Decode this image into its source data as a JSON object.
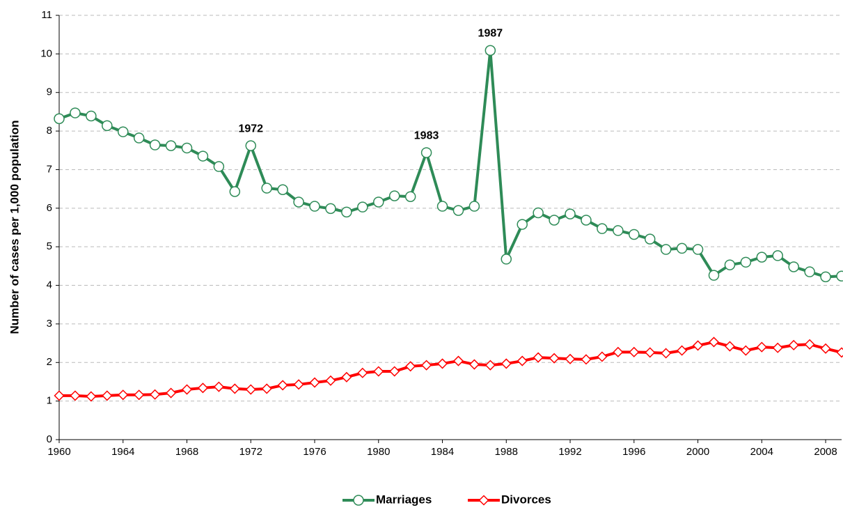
{
  "chart_data": {
    "type": "line",
    "y_label": "Number of cases per 1,000 population",
    "x": [
      1960,
      1961,
      1962,
      1963,
      1964,
      1965,
      1966,
      1967,
      1968,
      1969,
      1970,
      1971,
      1972,
      1973,
      1974,
      1975,
      1976,
      1977,
      1978,
      1979,
      1980,
      1981,
      1982,
      1983,
      1984,
      1985,
      1986,
      1987,
      1988,
      1989,
      1990,
      1991,
      1992,
      1993,
      1994,
      1995,
      1996,
      1997,
      1998,
      1999,
      2000,
      2001,
      2002,
      2003,
      2004,
      2005,
      2006,
      2007,
      2008,
      2009
    ],
    "series": [
      {
        "name": "Marriages",
        "color": "#2e8b57",
        "marker": "circle",
        "values": [
          8.32,
          8.47,
          8.39,
          8.14,
          7.98,
          7.82,
          7.64,
          7.62,
          7.56,
          7.35,
          7.08,
          6.43,
          7.62,
          6.52,
          6.48,
          6.16,
          6.05,
          5.99,
          5.9,
          6.03,
          6.16,
          6.32,
          6.3,
          7.44,
          6.05,
          5.94,
          6.05,
          10.09,
          4.68,
          5.58,
          5.88,
          5.69,
          5.85,
          5.69,
          5.47,
          5.42,
          5.32,
          5.2,
          4.93,
          4.96,
          4.93,
          4.26,
          4.53,
          4.6,
          4.73,
          4.77,
          4.48,
          4.35,
          4.22,
          4.24
        ]
      },
      {
        "name": "Divorces",
        "color": "#ff0000",
        "marker": "diamond",
        "values": [
          1.14,
          1.14,
          1.12,
          1.14,
          1.16,
          1.16,
          1.17,
          1.21,
          1.3,
          1.34,
          1.37,
          1.32,
          1.3,
          1.32,
          1.41,
          1.43,
          1.48,
          1.53,
          1.62,
          1.73,
          1.77,
          1.77,
          1.9,
          1.93,
          1.97,
          2.04,
          1.95,
          1.93,
          1.97,
          2.04,
          2.13,
          2.11,
          2.09,
          2.08,
          2.15,
          2.27,
          2.27,
          2.26,
          2.24,
          2.31,
          2.44,
          2.53,
          2.42,
          2.31,
          2.4,
          2.38,
          2.45,
          2.47,
          2.36,
          2.26
        ]
      }
    ],
    "annotations": [
      {
        "text": "1972",
        "x": 1972
      },
      {
        "text": "1983",
        "x": 1983
      },
      {
        "text": "1987",
        "x": 1987
      }
    ],
    "xlim": [
      1960,
      2009
    ],
    "xticks": [
      1960,
      1964,
      1968,
      1972,
      1976,
      1980,
      1984,
      1988,
      1992,
      1996,
      2000,
      2004,
      2008
    ],
    "ylim": [
      0,
      11
    ],
    "yticks": [
      0,
      1,
      2,
      3,
      4,
      5,
      6,
      7,
      8,
      9,
      10,
      11
    ],
    "grid": true,
    "legend": "bottom"
  }
}
